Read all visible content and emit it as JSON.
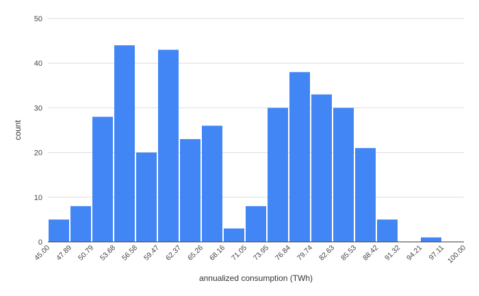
{
  "chart_data": {
    "type": "bar",
    "title": "",
    "xlabel": "annualized consumption (TWh)",
    "ylabel": "count",
    "ylim": [
      0,
      50
    ],
    "yticks": [
      0,
      10,
      20,
      30,
      40,
      50
    ],
    "bin_edges": [
      "45.00",
      "47.89",
      "50.79",
      "53.68",
      "56.58",
      "59.47",
      "62.37",
      "65.26",
      "68.16",
      "71.05",
      "73.95",
      "76.84",
      "79.74",
      "82.63",
      "85.53",
      "88.42",
      "91.32",
      "94.21",
      "97.11",
      "100.00"
    ],
    "values": [
      5,
      8,
      28,
      44,
      20,
      43,
      23,
      26,
      3,
      8,
      30,
      38,
      33,
      30,
      21,
      5,
      0,
      1,
      0
    ],
    "grid": true,
    "legend": "none",
    "bar_color": "#4285f4"
  }
}
